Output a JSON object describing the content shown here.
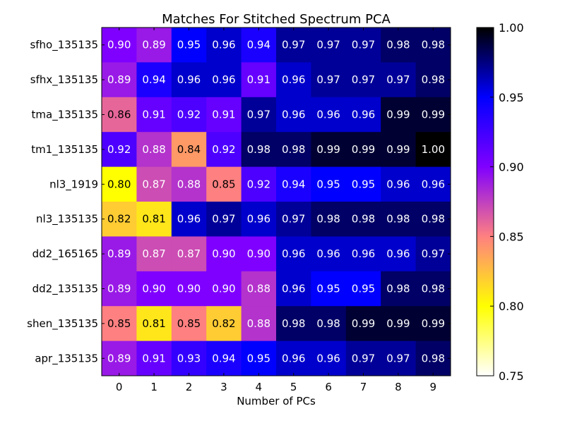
{
  "chart_data": {
    "type": "heatmap",
    "title": "Matches For Stitched Spectrum PCA",
    "xlabel": "Number of PCs",
    "ylabel": "",
    "x_ticks": [
      "0",
      "1",
      "2",
      "3",
      "4",
      "5",
      "6",
      "7",
      "8",
      "9"
    ],
    "rows": [
      "sfho_135135",
      "sfhx_135135",
      "tma_135135",
      "tm1_135135",
      "nl3_1919",
      "nl3_135135",
      "dd2_165165",
      "dd2_135135",
      "shen_135135",
      "apr_135135"
    ],
    "values": [
      [
        0.9,
        0.89,
        0.95,
        0.96,
        0.94,
        0.97,
        0.97,
        0.97,
        0.98,
        0.98
      ],
      [
        0.89,
        0.94,
        0.96,
        0.96,
        0.91,
        0.96,
        0.97,
        0.97,
        0.97,
        0.98
      ],
      [
        0.86,
        0.91,
        0.92,
        0.91,
        0.97,
        0.96,
        0.96,
        0.96,
        0.99,
        0.99
      ],
      [
        0.92,
        0.88,
        0.84,
        0.92,
        0.98,
        0.98,
        0.99,
        0.99,
        0.99,
        1.0
      ],
      [
        0.8,
        0.87,
        0.88,
        0.85,
        0.92,
        0.94,
        0.95,
        0.95,
        0.96,
        0.96
      ],
      [
        0.82,
        0.81,
        0.96,
        0.97,
        0.96,
        0.97,
        0.98,
        0.98,
        0.98,
        0.98
      ],
      [
        0.89,
        0.87,
        0.87,
        0.9,
        0.9,
        0.96,
        0.96,
        0.96,
        0.96,
        0.97
      ],
      [
        0.89,
        0.9,
        0.9,
        0.9,
        0.88,
        0.96,
        0.95,
        0.95,
        0.98,
        0.98
      ],
      [
        0.85,
        0.81,
        0.85,
        0.82,
        0.88,
        0.98,
        0.98,
        0.99,
        0.99,
        0.99
      ],
      [
        0.89,
        0.91,
        0.93,
        0.94,
        0.95,
        0.96,
        0.96,
        0.97,
        0.97,
        0.98
      ]
    ],
    "colorbar": {
      "range": [
        0.75,
        1.0
      ],
      "ticks": [
        "0.75",
        "0.80",
        "0.85",
        "0.90",
        "0.95",
        "1.00"
      ],
      "colormap": "gnuplot2_r",
      "stops": [
        "#ffffff",
        "#ffff00",
        "#ff8080",
        "#8000ff",
        "#0000ff",
        "#000000"
      ]
    },
    "colorbar_position": "right",
    "grid": false
  }
}
